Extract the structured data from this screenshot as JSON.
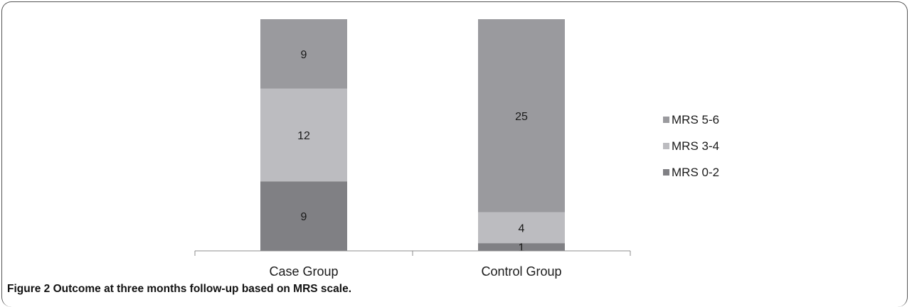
{
  "caption": {
    "label": "Figure 2",
    "text": "Outcome at three months follow-up based on MRS scale."
  },
  "chart_data": {
    "type": "bar",
    "stacked": true,
    "categories": [
      "Case Group",
      "Control Group"
    ],
    "series": [
      {
        "name": "MRS 0-2",
        "values": [
          9,
          1
        ],
        "color": "#808084"
      },
      {
        "name": "MRS 3-4",
        "values": [
          12,
          4
        ],
        "color": "#bcbcc0"
      },
      {
        "name": "MRS 5-6",
        "values": [
          9,
          25
        ],
        "color": "#9a9a9e"
      }
    ],
    "legend_position": "right",
    "legend_order": [
      "MRS 5-6",
      "MRS 3-4",
      "MRS 0-2"
    ],
    "grid": false,
    "data_labels": true,
    "ylim": [
      0,
      30
    ]
  }
}
